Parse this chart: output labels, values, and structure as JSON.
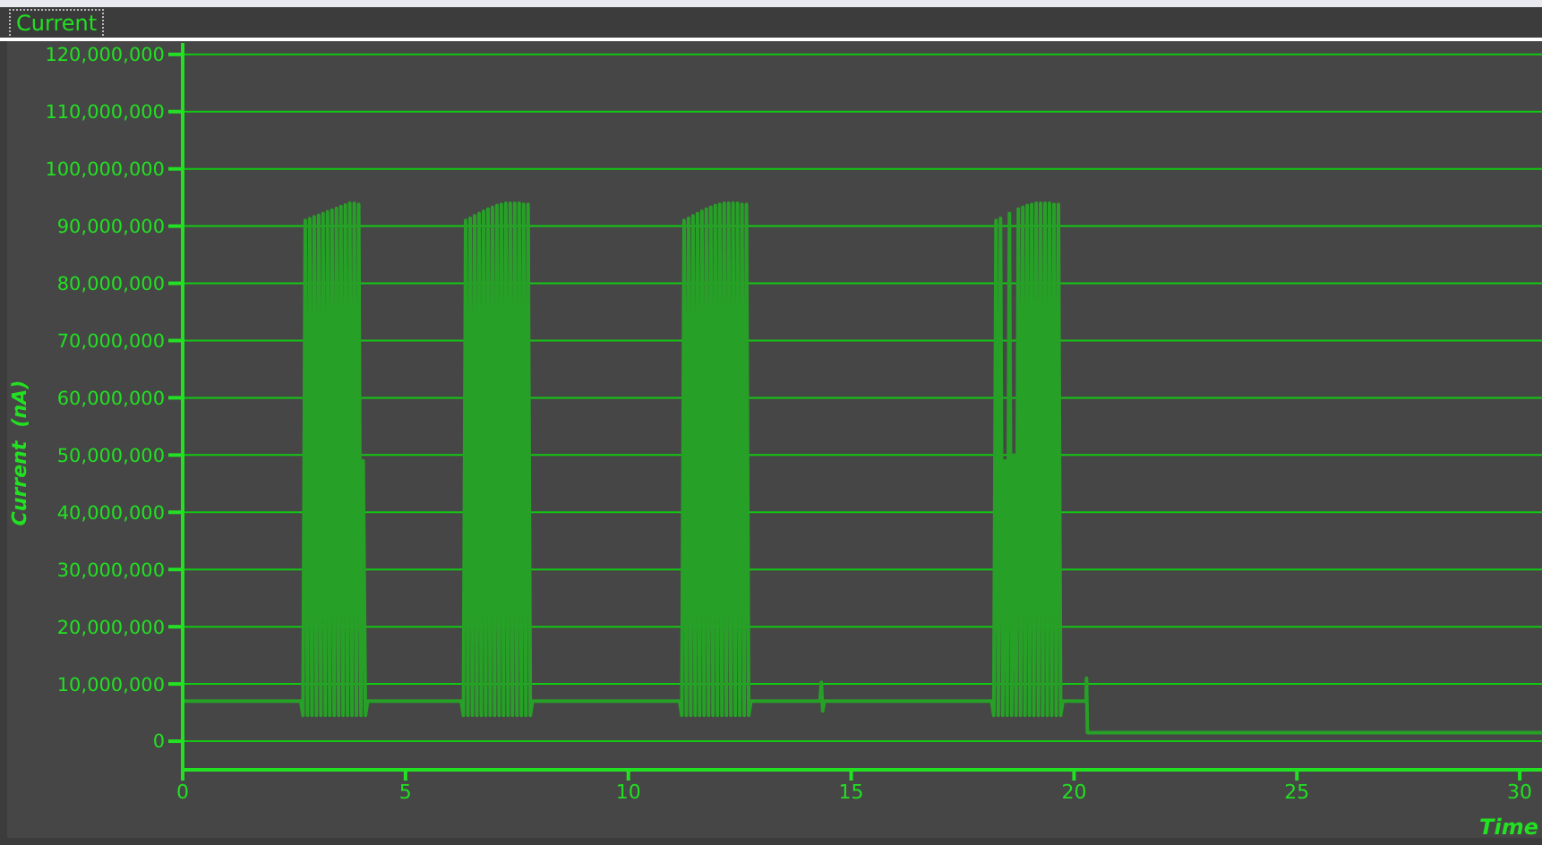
{
  "chart_data": {
    "type": "line",
    "title": "Current",
    "xlabel": "Time",
    "ylabel": "Current  (nA)",
    "xlim": [
      0,
      30.5
    ],
    "xticks": [
      0,
      5,
      10,
      15,
      20,
      25,
      30
    ],
    "ylim": [
      -5000000,
      122000000
    ],
    "yticks": [
      0,
      {
        "value": 10000000,
        "label": "10,000,000"
      },
      {
        "value": 20000000,
        "label": "20,000,000"
      },
      {
        "value": 30000000,
        "label": "30,000,000"
      },
      {
        "value": 40000000,
        "label": "40,000,000"
      },
      {
        "value": 50000000,
        "label": "50,000,000"
      },
      {
        "value": 60000000,
        "label": "60,000,000"
      },
      {
        "value": 70000000,
        "label": "70,000,000"
      },
      {
        "value": 80000000,
        "label": "80,000,000"
      },
      {
        "value": 90000000,
        "label": "90,000,000"
      },
      {
        "value": 100000000,
        "label": "100,000,000"
      },
      {
        "value": 110000000,
        "label": "110,000,000"
      },
      {
        "value": 120000000,
        "label": "120,000,000"
      }
    ],
    "grid": "y",
    "marker": "none",
    "line_style": "solid",
    "series": [
      {
        "color": "#27a027",
        "x": [
          0,
          2.65,
          2.7,
          2.75,
          2.8,
          2.85,
          2.9,
          2.95,
          3.0,
          3.05,
          3.1,
          3.15,
          3.2,
          3.25,
          3.3,
          3.35,
          3.4,
          3.45,
          3.5,
          3.55,
          3.6,
          3.65,
          3.7,
          3.75,
          3.8,
          3.85,
          3.9,
          3.95,
          4.0,
          4.05,
          4.1,
          4.15,
          6.25,
          6.3,
          6.35,
          6.4,
          6.45,
          6.5,
          6.55,
          6.6,
          6.65,
          6.7,
          6.75,
          6.8,
          6.85,
          6.9,
          6.95,
          7.0,
          7.05,
          7.1,
          7.15,
          7.2,
          7.25,
          7.3,
          7.35,
          7.4,
          7.45,
          7.5,
          7.55,
          7.6,
          7.65,
          7.7,
          7.75,
          7.8,
          7.85,
          11.15,
          11.2,
          11.25,
          11.3,
          11.35,
          11.4,
          11.45,
          11.5,
          11.55,
          11.6,
          11.65,
          11.7,
          11.75,
          11.8,
          11.85,
          11.9,
          11.95,
          12.0,
          12.05,
          12.1,
          12.15,
          12.2,
          12.25,
          12.3,
          12.35,
          12.4,
          12.45,
          12.5,
          12.55,
          12.6,
          12.65,
          12.7,
          12.75,
          14.3,
          14.33,
          14.36,
          14.4,
          18.15,
          18.2,
          18.25,
          18.3,
          18.35,
          18.4,
          18.45,
          18.5,
          18.55,
          18.6,
          18.65,
          18.7,
          18.75,
          18.8,
          18.85,
          18.9,
          18.95,
          19.0,
          19.05,
          19.1,
          19.15,
          19.2,
          19.25,
          19.3,
          19.35,
          19.4,
          19.45,
          19.5,
          19.55,
          19.6,
          19.65,
          19.7,
          19.75,
          20.27,
          20.28,
          20.3,
          30.5
        ],
        "values": [
          7000000,
          7000000,
          4500000,
          91000000,
          4500000,
          91300000,
          4500000,
          91600000,
          4500000,
          91900000,
          4500000,
          92200000,
          4500000,
          92500000,
          4500000,
          92800000,
          4500000,
          93100000,
          4500000,
          93400000,
          4500000,
          93700000,
          4500000,
          94000000,
          4500000,
          94000000,
          4500000,
          93800000,
          4500000,
          49000000,
          4500000,
          7000000,
          7000000,
          4500000,
          91000000,
          4500000,
          91400000,
          4500000,
          91800000,
          4500000,
          92200000,
          4500000,
          92600000,
          4500000,
          93000000,
          4500000,
          93300000,
          4500000,
          93600000,
          4500000,
          93800000,
          4500000,
          94000000,
          4500000,
          94000000,
          4500000,
          94000000,
          4500000,
          94000000,
          4500000,
          93800000,
          4500000,
          93800000,
          4500000,
          7000000,
          7000000,
          4500000,
          91000000,
          4500000,
          91400000,
          4500000,
          91800000,
          4500000,
          92200000,
          4500000,
          92600000,
          4500000,
          93000000,
          4500000,
          93300000,
          4500000,
          93600000,
          4500000,
          93800000,
          4500000,
          94000000,
          4500000,
          94000000,
          4500000,
          94000000,
          4500000,
          94000000,
          4500000,
          93800000,
          4500000,
          93800000,
          4500000,
          7000000,
          7000000,
          10300000,
          5300000,
          7000000,
          7000000,
          4500000,
          91000000,
          4500000,
          91400000,
          4500000,
          49000000,
          4500000,
          92200000,
          4500000,
          50000000,
          4500000,
          93000000,
          4500000,
          93300000,
          4500000,
          93600000,
          4500000,
          93800000,
          4500000,
          94000000,
          4500000,
          94000000,
          4500000,
          94000000,
          4500000,
          94000000,
          4500000,
          93800000,
          4500000,
          93800000,
          4500000,
          7000000,
          7000000,
          11000000,
          1500000,
          1500000
        ]
      }
    ]
  }
}
